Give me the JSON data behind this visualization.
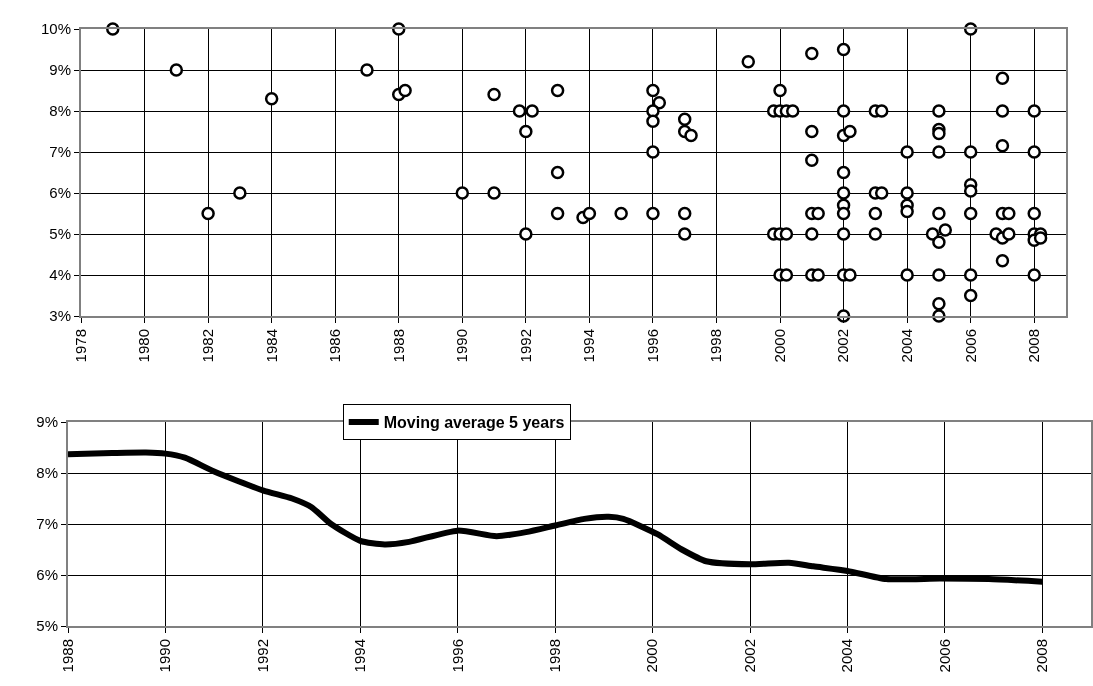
{
  "chart_data": [
    {
      "type": "scatter",
      "marker": "circle",
      "grid": true,
      "legend": false,
      "xlim": [
        1978,
        2009
      ],
      "xticks": [
        1978,
        1980,
        1982,
        1984,
        1986,
        1988,
        1990,
        1992,
        1994,
        1996,
        1998,
        2000,
        2002,
        2004,
        2006,
        2008
      ],
      "ylim": [
        3,
        10
      ],
      "yticks": [
        {
          "value": 3,
          "label": "3%"
        },
        {
          "value": 4,
          "label": "4%"
        },
        {
          "value": 5,
          "label": "5%"
        },
        {
          "value": 6,
          "label": "6%"
        },
        {
          "value": 7,
          "label": "7%"
        },
        {
          "value": 8,
          "label": "8%"
        },
        {
          "value": 9,
          "label": "9%"
        },
        {
          "value": 10,
          "label": "10%"
        }
      ],
      "series": [
        {
          "color": "#000000",
          "x": [
            1979,
            1981,
            1982,
            1983,
            1984,
            1987,
            1988,
            1988,
            1988.2,
            1990,
            1991,
            1991,
            1991.8,
            1992.2,
            1992,
            1992,
            1993,
            1993,
            1993,
            1993.8,
            1994,
            1995,
            1996,
            1996.2,
            1996,
            1996,
            1996,
            1996,
            1997,
            1997,
            1997.2,
            1997,
            1997,
            1999,
            2000,
            1999.8,
            2000,
            2000.2,
            2000.4,
            2001,
            2001,
            2001,
            2001,
            2001.2,
            2001,
            2001,
            2001.2,
            1999.8,
            2000,
            2000.2,
            2000,
            2000.2,
            2002,
            2002,
            2002,
            2002.2,
            2002,
            2002,
            2002,
            2002,
            2002,
            2002,
            2002.2,
            2002,
            2003,
            2003.2,
            2003,
            2003.2,
            2003,
            2003,
            2004,
            2004,
            2004,
            2004,
            2004,
            2005,
            2005,
            2005,
            2005,
            2005,
            2004.8,
            2005,
            2005.2,
            2005,
            2005,
            2005,
            2006,
            2006,
            2006,
            2006,
            2006,
            2006,
            2006,
            2007,
            2007,
            2007,
            2007,
            2007.2,
            2006.8,
            2007,
            2007.2,
            2007,
            2008,
            2008,
            2008,
            2008,
            2008.2,
            2008,
            2008.2,
            2008
          ],
          "values": [
            10,
            9,
            5.5,
            6,
            8.3,
            9,
            10,
            8.4,
            8.5,
            6,
            8.4,
            6,
            8,
            8,
            7.5,
            5,
            8.5,
            6.5,
            5.5,
            5.4,
            5.5,
            5.5,
            8.5,
            8.2,
            8,
            7.75,
            7,
            5.5,
            7.8,
            7.5,
            7.4,
            5.5,
            5,
            9.2,
            8.5,
            8,
            8,
            8,
            8,
            9.4,
            7.5,
            6.8,
            5.5,
            5.5,
            5,
            4,
            4,
            5,
            5,
            5,
            4,
            4,
            9.5,
            8,
            7.4,
            7.5,
            6.5,
            6,
            5.7,
            5.5,
            5,
            4,
            4,
            3,
            8,
            8,
            6,
            6,
            5.5,
            5,
            7,
            6,
            5.7,
            5.55,
            4,
            8,
            7.55,
            7.45,
            7,
            5.5,
            5,
            4.8,
            5.1,
            4,
            3.3,
            3,
            10,
            7,
            6.2,
            6.05,
            5.5,
            4,
            3.5,
            8.8,
            8,
            7.15,
            5.5,
            5.5,
            5,
            4.9,
            5,
            4.35,
            8,
            7,
            5.5,
            5,
            5,
            4.85,
            4.9,
            4
          ]
        }
      ]
    },
    {
      "type": "line",
      "marker": "none",
      "line_style": "solid",
      "grid": true,
      "legend": "top",
      "xlim": [
        1988,
        2009
      ],
      "xticks": [
        1988,
        1990,
        1992,
        1994,
        1996,
        1998,
        2000,
        2002,
        2004,
        2006,
        2008
      ],
      "ylim": [
        5,
        9
      ],
      "yticks": [
        {
          "value": 5,
          "label": "5%"
        },
        {
          "value": 6,
          "label": "6%"
        },
        {
          "value": 7,
          "label": "7%"
        },
        {
          "value": 8,
          "label": "8%"
        },
        {
          "value": 9,
          "label": "9%"
        }
      ],
      "series": [
        {
          "name": "Moving average 5 years",
          "color": "#000000",
          "x": [
            1988,
            1988.9,
            1989.6,
            1990,
            1990.4,
            1991,
            1992,
            1992.6,
            1993,
            1993.4,
            1994,
            1994.5,
            1995,
            1996,
            1996.8,
            1997.4,
            1998,
            1998.6,
            1999.1,
            1999.4,
            2000.1,
            2000.6,
            2001.1,
            2002,
            2002.8,
            2003.3,
            2004,
            2004.8,
            2005.9,
            2006.9,
            2008
          ],
          "values": [
            8.37,
            8.39,
            8.4,
            8.38,
            8.3,
            8.03,
            7.66,
            7.5,
            7.33,
            7,
            6.67,
            6.6,
            6.65,
            6.87,
            6.76,
            6.84,
            6.97,
            7.1,
            7.14,
            7.1,
            6.8,
            6.5,
            6.27,
            6.21,
            6.24,
            6.17,
            6.08,
            5.92,
            5.93,
            5.92,
            5.87
          ]
        }
      ]
    }
  ]
}
